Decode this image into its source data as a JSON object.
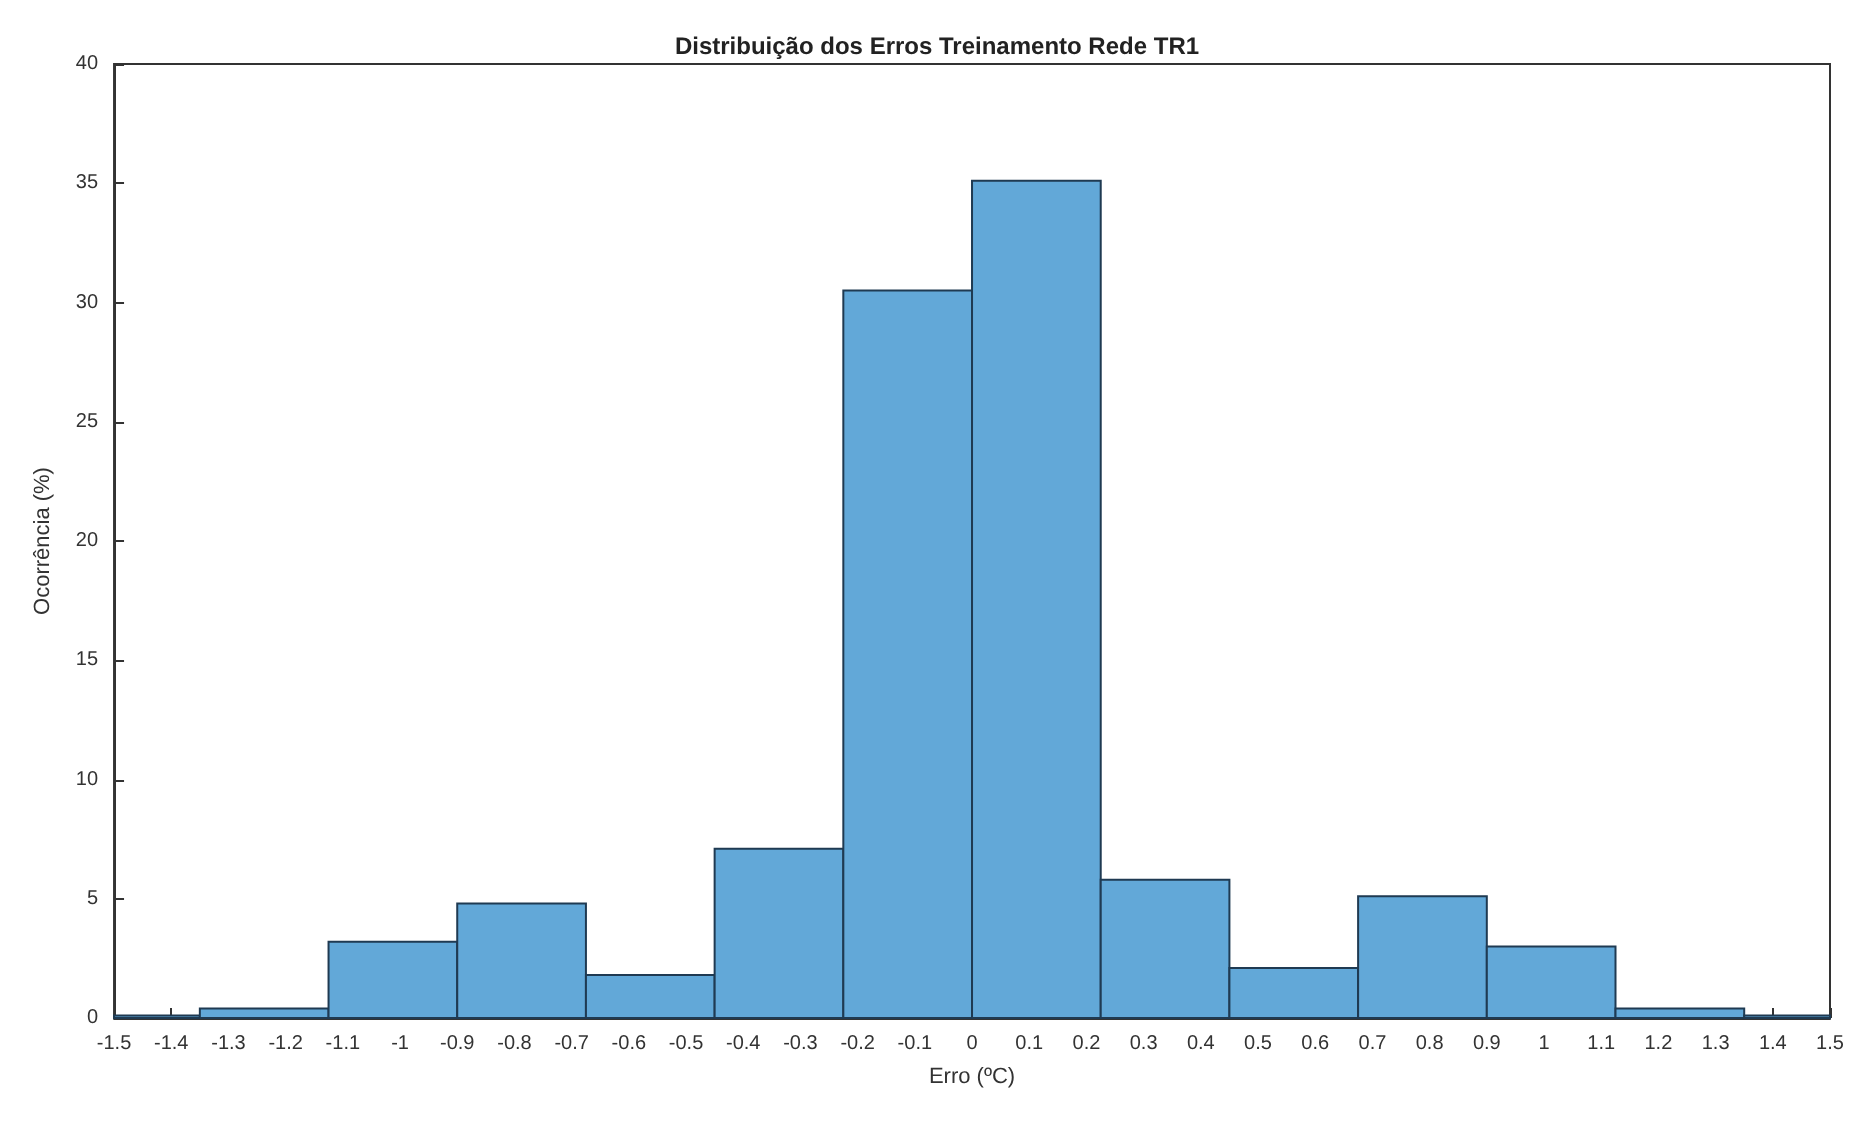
{
  "chart_data": {
    "type": "histogram",
    "title": "Distribuição dos Erros Treinamento Rede TR1",
    "xlabel": "Erro (ºC)",
    "ylabel": "Ocorrência (%)",
    "bins": [
      -1.5,
      -1.35,
      -1.125,
      -0.9,
      -0.675,
      -0.45,
      -0.225,
      0,
      0.225,
      0.45,
      0.675,
      0.9,
      1.125,
      1.35,
      1.5
    ],
    "values": [
      0.1,
      0.4,
      3.2,
      4.8,
      1.8,
      7.1,
      30.5,
      35.1,
      5.8,
      2.1,
      5.1,
      3.0,
      0.4,
      0.1
    ],
    "color": "#62a8d8",
    "xlim": [
      -1.5,
      1.5
    ],
    "xticks": [
      -1.5,
      -1.4,
      -1.3,
      -1.2,
      -1.1,
      -1,
      -0.9,
      -0.8,
      -0.7,
      -0.6,
      -0.5,
      -0.4,
      -0.3,
      -0.2,
      -0.1,
      0,
      0.1,
      0.2,
      0.3,
      0.4,
      0.5,
      0.6,
      0.7,
      0.8,
      0.9,
      1,
      1.1,
      1.2,
      1.3,
      1.4,
      1.5
    ],
    "ylim": [
      0,
      40
    ],
    "yticks": [
      0,
      5,
      10,
      15,
      20,
      25,
      30,
      35,
      40
    ],
    "grid": false
  }
}
